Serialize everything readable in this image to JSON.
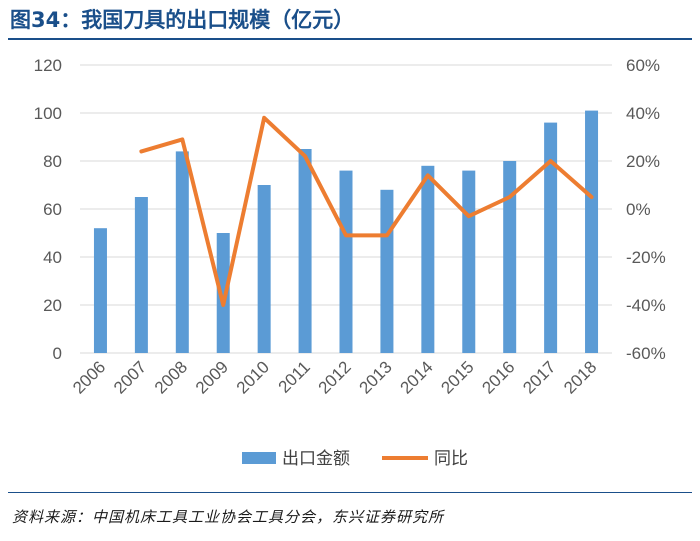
{
  "title": "图34：我国刀具的出口规模（亿元）",
  "source": "资料来源：中国机床工具工业协会工具分会，东兴证券研究所",
  "chart_data": {
    "type": "bar",
    "title": "图34：我国刀具的出口规模（亿元）",
    "categories": [
      "2006",
      "2007",
      "2008",
      "2009",
      "2010",
      "2011",
      "2012",
      "2013",
      "2014",
      "2015",
      "2016",
      "2017",
      "2018"
    ],
    "series": [
      {
        "name": "出口金额",
        "type": "bar",
        "axis": "left",
        "color": "#5b9bd5",
        "values": [
          52,
          65,
          84,
          50,
          70,
          85,
          76,
          68,
          78,
          76,
          80,
          96,
          101
        ]
      },
      {
        "name": "同比",
        "type": "line",
        "axis": "right",
        "color": "#ed7d31",
        "values": [
          null,
          24,
          29,
          -40,
          38,
          22,
          -11,
          -11,
          14,
          -3,
          5,
          20,
          5
        ]
      }
    ],
    "y_left": {
      "min": 0,
      "max": 120,
      "ticks": [
        0,
        20,
        40,
        60,
        80,
        100,
        120
      ]
    },
    "y_right": {
      "min": -60,
      "max": 60,
      "ticks": [
        "-60%",
        "-40%",
        "-20%",
        "0%",
        "20%",
        "40%",
        "60%"
      ]
    },
    "grid": true,
    "legend_position": "bottom"
  }
}
